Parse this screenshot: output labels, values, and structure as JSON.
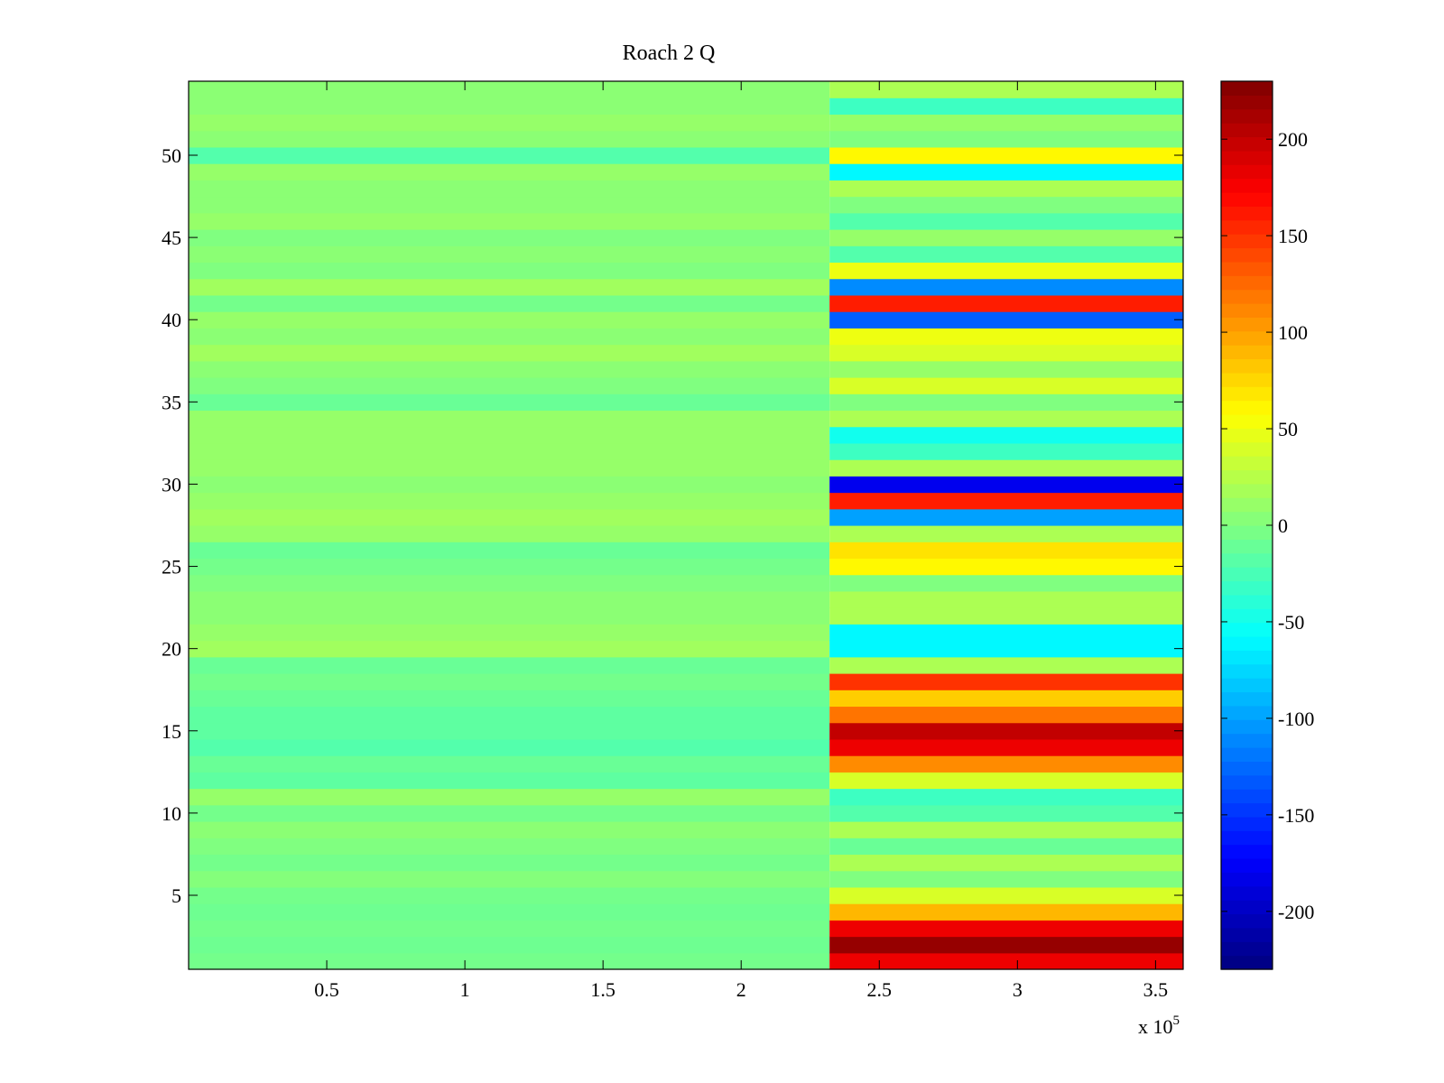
{
  "chart_data": {
    "type": "heatmap",
    "title": "Roach 2 Q",
    "xlabel": "",
    "ylabel": "",
    "x_exponent_label": {
      "prefix": "x 10",
      "exponent": "5"
    },
    "x_range": [
      0,
      360000
    ],
    "y_range": [
      0.5,
      54.5
    ],
    "x_ticks": [
      50000,
      100000,
      150000,
      200000,
      250000,
      300000,
      350000
    ],
    "x_tick_labels": [
      "0.5",
      "1",
      "1.5",
      "2",
      "2.5",
      "3",
      "3.5"
    ],
    "y_ticks": [
      5,
      10,
      15,
      20,
      25,
      30,
      35,
      40,
      45,
      50
    ],
    "y_tick_labels": [
      "5",
      "10",
      "15",
      "20",
      "25",
      "30",
      "35",
      "40",
      "45",
      "50"
    ],
    "colormap": "jet",
    "color_range": [
      -230,
      230
    ],
    "colorbar_ticks": [
      200,
      150,
      100,
      50,
      0,
      -50,
      -100,
      -150,
      -200
    ],
    "colorbar_tick_labels": [
      "200",
      "150",
      "100",
      "50",
      "0",
      "-50",
      "-100",
      "-150",
      "-200"
    ],
    "change_point_x": 232000,
    "rows": [
      1,
      2,
      3,
      4,
      5,
      6,
      7,
      8,
      9,
      10,
      11,
      12,
      13,
      14,
      15,
      16,
      17,
      18,
      19,
      20,
      21,
      22,
      23,
      24,
      25,
      26,
      27,
      28,
      29,
      30,
      31,
      32,
      33,
      34,
      35,
      36,
      37,
      38,
      39,
      40,
      41,
      42,
      43,
      44,
      45,
      46,
      47,
      48,
      49,
      50,
      51,
      52,
      53,
      54
    ],
    "segment_before_values": [
      -5,
      -8,
      -5,
      -8,
      -5,
      2,
      -5,
      0,
      5,
      -5,
      10,
      -15,
      -10,
      -20,
      -15,
      -15,
      -10,
      -5,
      -10,
      15,
      10,
      5,
      5,
      0,
      -5,
      -10,
      10,
      15,
      10,
      5,
      10,
      10,
      10,
      10,
      -10,
      0,
      5,
      15,
      5,
      10,
      -5,
      15,
      0,
      5,
      0,
      10,
      5,
      5,
      10,
      -20,
      5,
      10,
      5,
      5
    ],
    "segment_after_values": [
      180,
      220,
      180,
      90,
      40,
      0,
      20,
      -10,
      20,
      -20,
      -30,
      40,
      110,
      180,
      200,
      120,
      80,
      150,
      20,
      -60,
      -60,
      20,
      20,
      0,
      60,
      70,
      20,
      -100,
      160,
      -180,
      20,
      -30,
      -50,
      20,
      0,
      40,
      10,
      40,
      50,
      -130,
      160,
      -110,
      50,
      -20,
      10,
      -20,
      0,
      20,
      -60,
      60,
      0,
      10,
      -30,
      20
    ]
  }
}
